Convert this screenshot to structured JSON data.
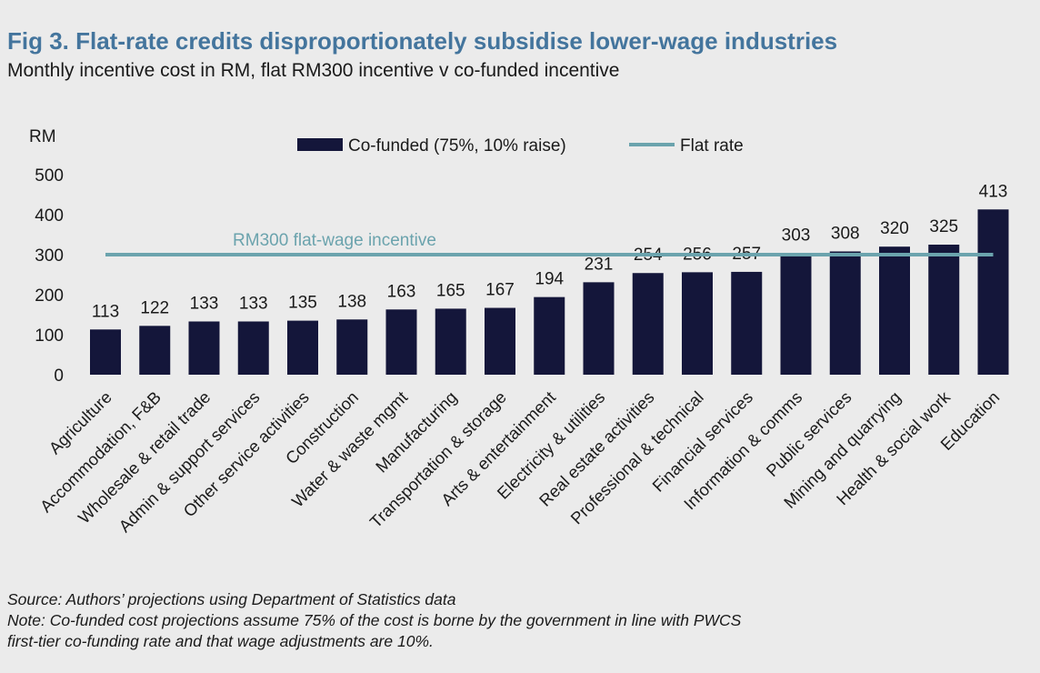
{
  "title": "Fig 3. Flat-rate credits disproportionately subsidise lower-wage industries",
  "subtitle": "Monthly incentive cost in RM, flat RM300 incentive v co-funded incentive",
  "notes": {
    "source": "Source: Authors’ projections using Department of Statistics data",
    "note_line1": "Note: Co-funded cost projections assume 75% of the cost is borne by the government in line with PWCS",
    "note_line2": "first-tier co-funding rate and that wage adjustments are 10%."
  },
  "colors": {
    "bar": "#14163a",
    "flat_line": "#6ba3ad",
    "title": "#44759d",
    "background": "#ebebeb"
  },
  "chart_data": {
    "type": "bar",
    "ylabel": "RM",
    "ylim": [
      0,
      500
    ],
    "yticks": [
      0,
      100,
      200,
      300,
      400,
      500
    ],
    "grid": false,
    "legend_position": "top",
    "categories": [
      "Agriculture",
      "Accommodation, F&B",
      "Wholesale & retail trade",
      "Admin & support services",
      "Other service activities",
      "Construction",
      "Water & waste mgmt",
      "Manufacturing",
      "Transportation & storage",
      "Arts & entertainment",
      "Electricity & utilities",
      "Real estate activities",
      "Professional & technical",
      "Financial services",
      "Information & comms",
      "Public services",
      "Mining and quarrying",
      "Health & social work",
      "Education"
    ],
    "series": [
      {
        "name": "Co-funded (75%, 10% raise)",
        "type": "bar",
        "values": [
          113,
          122,
          133,
          133,
          135,
          138,
          163,
          165,
          167,
          194,
          231,
          254,
          256,
          257,
          303,
          308,
          320,
          325,
          413
        ]
      },
      {
        "name": "Flat rate",
        "type": "line",
        "value": 300
      }
    ],
    "annotation": "RM300 flat-wage incentive"
  }
}
